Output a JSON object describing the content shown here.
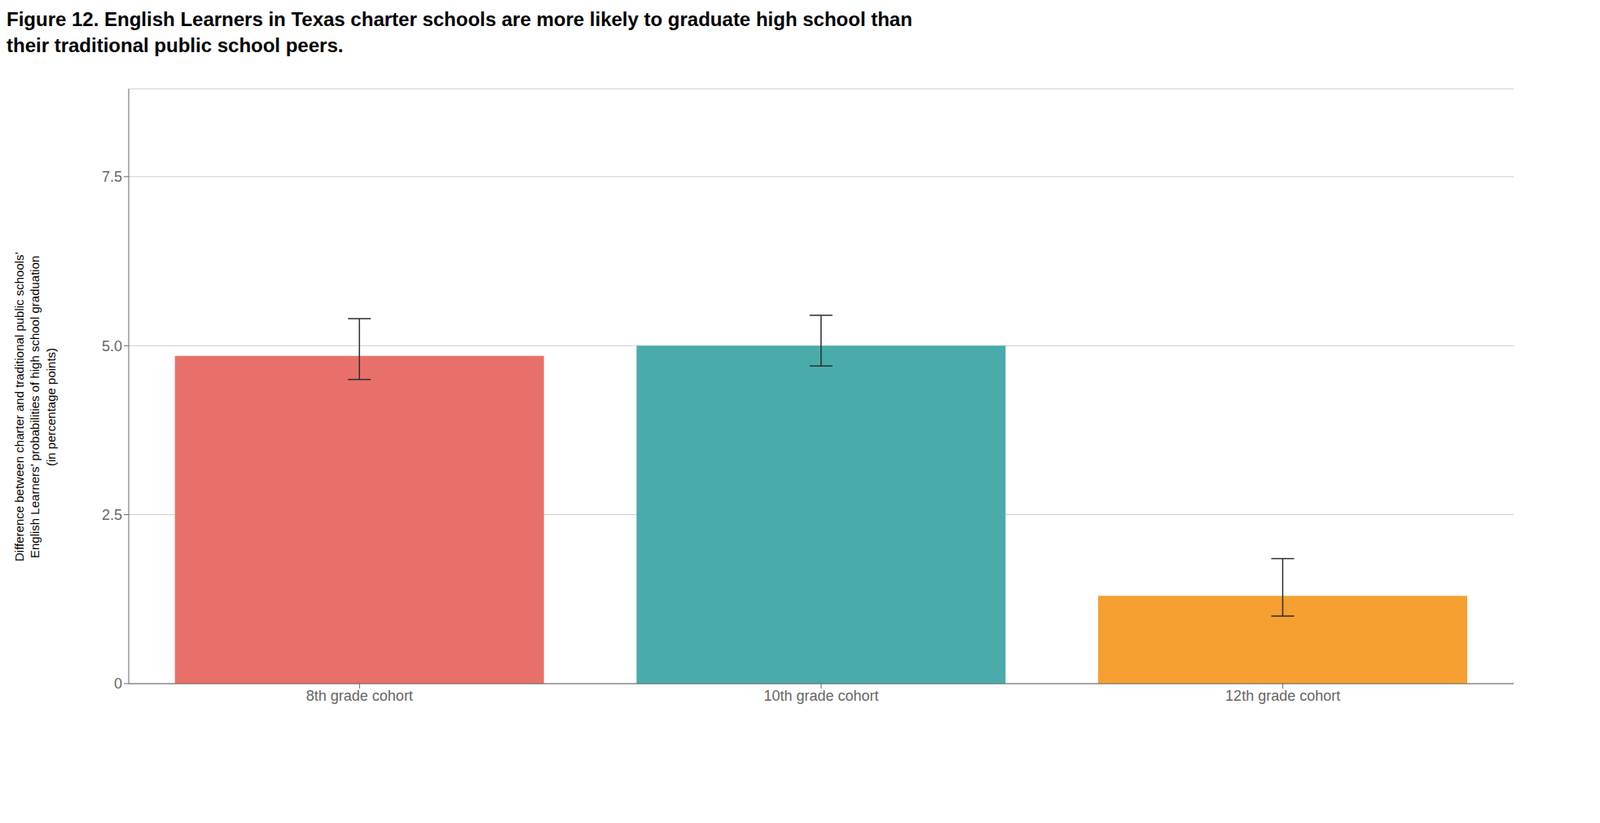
{
  "chart_data": {
    "type": "bar",
    "title": "Figure 12. English Learners in Texas charter schools are more likely to graduate high school than\ntheir traditional public school peers.",
    "ylabel": "Difference between charter and traditional public schools’\nEnglish Learners’ probabilities of high school graduation\n(in percentage points)",
    "categories": [
      "8th grade cohort",
      "10th grade cohort",
      "12th grade cohort"
    ],
    "values": [
      4.85,
      5.0,
      1.3
    ],
    "error_lower": [
      0.35,
      0.3,
      0.3
    ],
    "error_upper": [
      0.55,
      0.45,
      0.55
    ],
    "colors": [
      "#E8706A",
      "#4AACAA",
      "#F5A030"
    ],
    "ylim": [
      0,
      8.8
    ],
    "yticks": [
      0,
      2.5,
      {
        "value": 5.0,
        "label": "5.0"
      },
      7.5
    ],
    "grid": true
  }
}
